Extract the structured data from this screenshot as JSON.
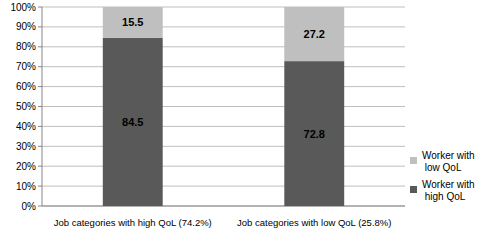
{
  "chart_data": {
    "type": "bar",
    "stacked": true,
    "data_labels": true,
    "grid": true,
    "legend": "right",
    "categories": [
      "Job categories with high QoL (74.2%)",
      "Job categories with low QoL (25.8%)"
    ],
    "series": [
      {
        "name": "Worker with high QoL",
        "color": "#595959",
        "values": [
          84.5,
          72.8
        ]
      },
      {
        "name": "Worker with low QoL",
        "color": "#bfbfbf",
        "values": [
          15.5,
          27.2
        ]
      }
    ],
    "ylim": [
      0,
      100
    ],
    "yticks": [
      {
        "value": 0,
        "label": "0%"
      },
      {
        "value": 10,
        "label": "10%"
      },
      {
        "value": 20,
        "label": "20%"
      },
      {
        "value": 30,
        "label": "30%"
      },
      {
        "value": 40,
        "label": "40%"
      },
      {
        "value": 50,
        "label": "50%"
      },
      {
        "value": 60,
        "label": "60%"
      },
      {
        "value": 70,
        "label": "70%"
      },
      {
        "value": 80,
        "label": "80%"
      },
      {
        "value": 90,
        "label": "90%"
      },
      {
        "value": 100,
        "label": "100%"
      }
    ]
  }
}
